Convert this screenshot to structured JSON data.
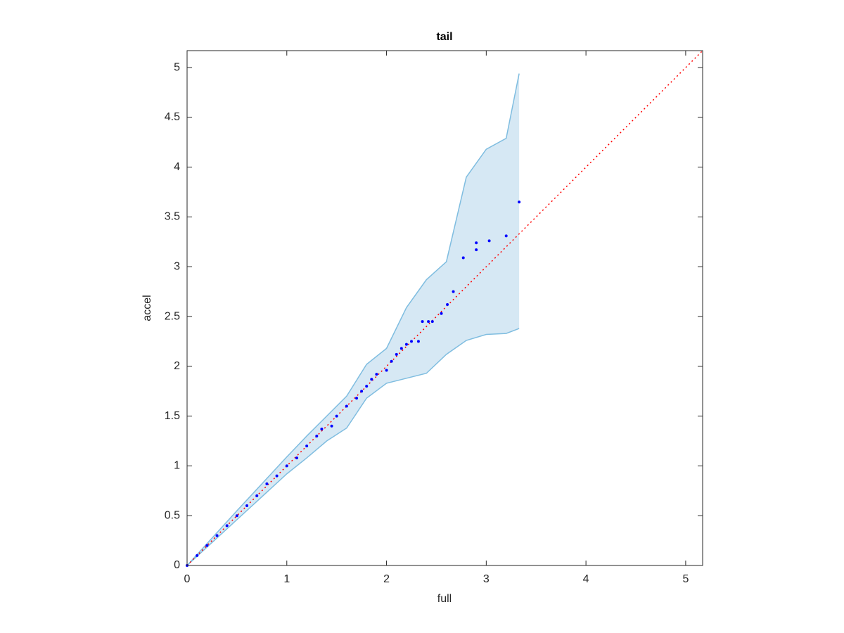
{
  "chart_data": {
    "type": "qq-band",
    "title": "tail",
    "x_label": "full",
    "y_label": "accel",
    "xlim": [
      0,
      5.17
    ],
    "ylim": [
      0,
      5.17
    ],
    "xticks": [
      0,
      1,
      2,
      3,
      4,
      5
    ],
    "yticks": [
      0,
      0.5,
      1,
      1.5,
      2,
      2.5,
      3,
      3.5,
      4,
      4.5,
      5
    ],
    "band": {
      "color": "#d6e8f4",
      "edge_color": "#7fbde0",
      "x": [
        0,
        0.5,
        1,
        1.2,
        1.4,
        1.6,
        1.8,
        2.0,
        2.2,
        2.4,
        2.6,
        2.8,
        3.0,
        3.2,
        3.33
      ],
      "upper": [
        0,
        0.55,
        1.09,
        1.3,
        1.5,
        1.7,
        2.02,
        2.18,
        2.59,
        2.87,
        3.05,
        3.9,
        4.18,
        4.29,
        4.94
      ],
      "lower": [
        0,
        0.46,
        0.92,
        1.08,
        1.25,
        1.38,
        1.68,
        1.83,
        1.88,
        1.93,
        2.12,
        2.26,
        2.32,
        2.33,
        2.38
      ]
    },
    "reference": {
      "color": "#ff0000",
      "x": [
        0,
        5.17
      ],
      "values": [
        0,
        5.17
      ]
    },
    "points": {
      "color": "#0000ff",
      "x": [
        0,
        0.1,
        0.2,
        0.3,
        0.4,
        0.5,
        0.6,
        0.7,
        0.8,
        0.9,
        1.0,
        1.1,
        1.2,
        1.3,
        1.35,
        1.45,
        1.5,
        1.6,
        1.7,
        1.75,
        1.8,
        1.85,
        1.9,
        2.0,
        2.05,
        2.1,
        2.15,
        2.2,
        2.25,
        2.32,
        2.36,
        2.42,
        2.46,
        2.55,
        2.61,
        2.67,
        2.77,
        2.9,
        2.9,
        3.03,
        3.2,
        3.33
      ],
      "values": [
        0,
        0.1,
        0.2,
        0.3,
        0.4,
        0.5,
        0.6,
        0.7,
        0.82,
        0.9,
        1.0,
        1.08,
        1.2,
        1.3,
        1.37,
        1.4,
        1.5,
        1.6,
        1.68,
        1.75,
        1.8,
        1.87,
        1.92,
        1.96,
        2.05,
        2.12,
        2.18,
        2.22,
        2.25,
        2.25,
        2.45,
        2.45,
        2.45,
        2.53,
        2.62,
        2.75,
        3.09,
        3.17,
        3.24,
        3.26,
        3.31,
        3.65
      ]
    }
  }
}
